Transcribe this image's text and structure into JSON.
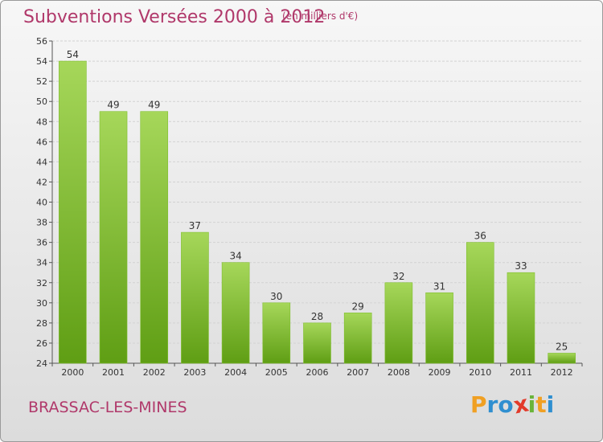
{
  "header": {
    "title": "Subventions Versées 2000 à 2012",
    "subtitle": "(en milliers d'€)"
  },
  "footer": {
    "commune": "BRASSAC-LES-MINES",
    "logo_letters": [
      "P",
      "r",
      "o",
      "x",
      "i",
      "t",
      "i"
    ],
    "logo_colors": [
      "#f0a023",
      "#2f8fd0",
      "#2f8fd0",
      "#e23a2a",
      "#6ab43a",
      "#f0a023",
      "#2f8fd0"
    ]
  },
  "colors": {
    "title": "#b0386a",
    "bar_top": "#a6d75a",
    "bar_bottom": "#5f9e14",
    "grid": "#d2d2d2"
  },
  "chart_data": {
    "type": "bar",
    "title": "Subventions Versées 2000 à 2012",
    "subtitle": "(en milliers d'€)",
    "categories": [
      "2000",
      "2001",
      "2002",
      "2003",
      "2004",
      "2005",
      "2006",
      "2007",
      "2008",
      "2009",
      "2010",
      "2011",
      "2012"
    ],
    "values": [
      54,
      49,
      49,
      37,
      34,
      30,
      28,
      29,
      32,
      31,
      36,
      33,
      25
    ],
    "ylim": [
      24,
      56
    ],
    "yticks": [
      24,
      26,
      28,
      30,
      32,
      34,
      36,
      38,
      40,
      42,
      44,
      46,
      48,
      50,
      52,
      54,
      56
    ],
    "grid": true,
    "xlabel": "",
    "ylabel": ""
  }
}
